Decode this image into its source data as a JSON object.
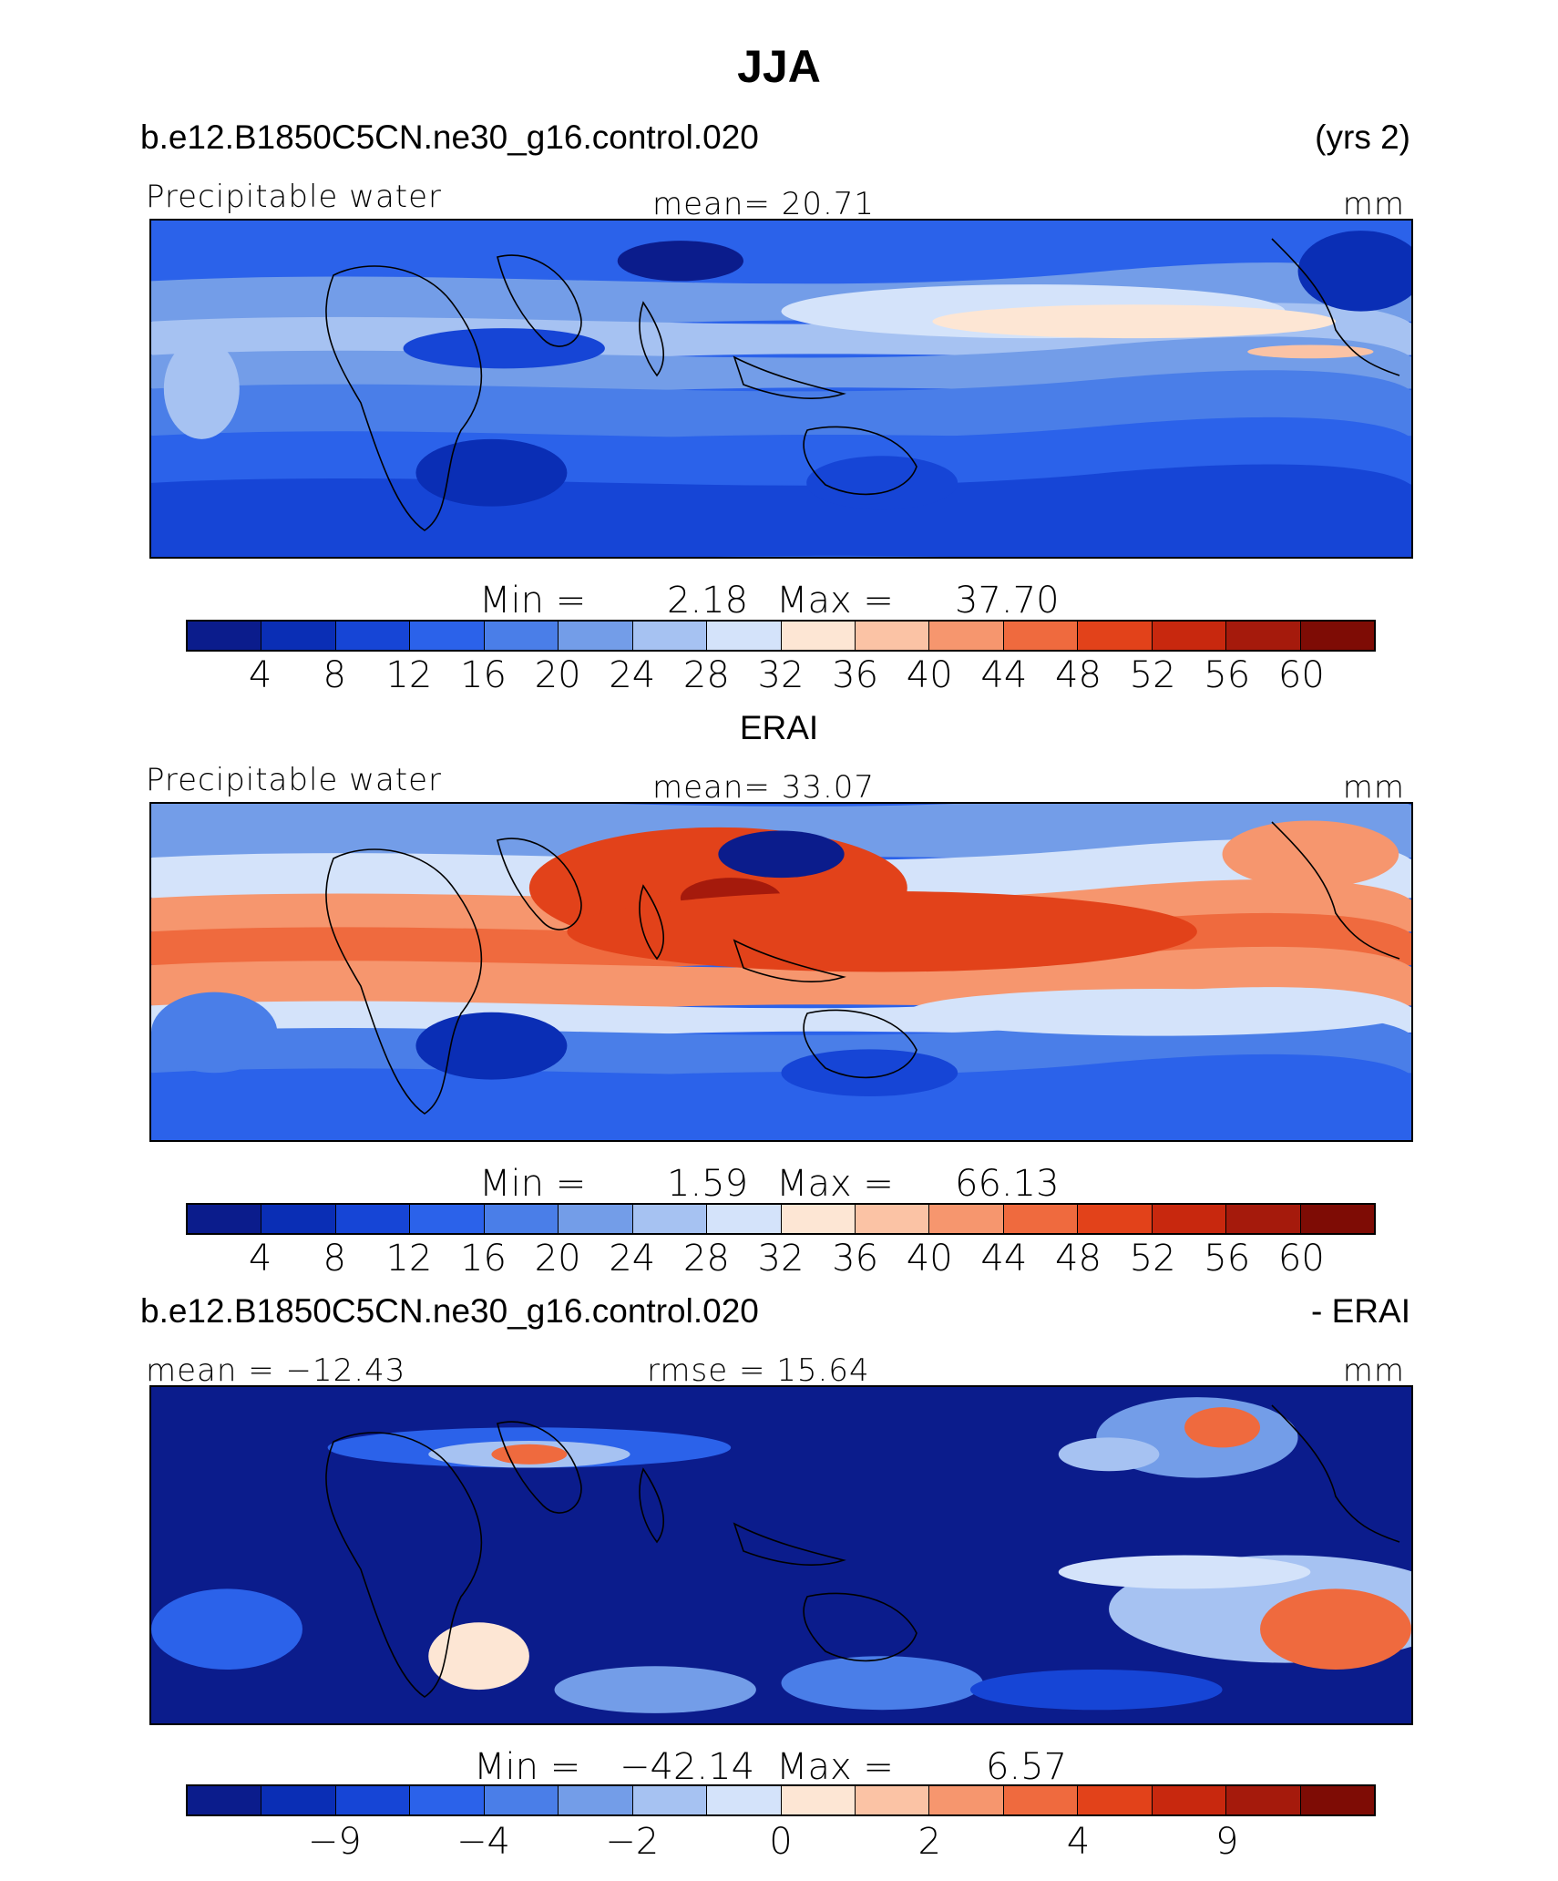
{
  "title": "JJA",
  "palette": [
    "#0b1c8c",
    "#0a2eb5",
    "#1645d6",
    "#2b62ea",
    "#4a7ee8",
    "#739de8",
    "#a6c2f2",
    "#d4e3fa",
    "#fde6d4",
    "#fbc3a5",
    "#f6966e",
    "#ef6a3e",
    "#e2421a",
    "#c8280e",
    "#a51a0c",
    "#7e0c05"
  ],
  "panels": [
    {
      "header_left": "b.e12.B1850C5CN.ne30_g16.control.020",
      "header_right": "(yrs 2)",
      "var_label": "Precipitable water",
      "mean_text": "mean=   20.71",
      "units": "mm",
      "min_label": "Min  =",
      "min_value": "2.18",
      "max_label": "Max  =",
      "max_value": "37.70",
      "ticks": [
        "4",
        "8",
        "12",
        "16",
        "20",
        "24",
        "28",
        "32",
        "36",
        "40",
        "44",
        "48",
        "52",
        "56",
        "60"
      ],
      "theme": "model"
    },
    {
      "header_left": "ERAI",
      "header_right": "",
      "var_label": "Precipitable water",
      "mean_text": "mean=   33.07",
      "units": "mm",
      "min_label": "Min  =",
      "min_value": "1.59",
      "max_label": "Max  =",
      "max_value": "66.13",
      "ticks": [
        "4",
        "8",
        "12",
        "16",
        "20",
        "24",
        "28",
        "32",
        "36",
        "40",
        "44",
        "48",
        "52",
        "56",
        "60"
      ],
      "theme": "obs"
    },
    {
      "header_left": "b.e12.B1850C5CN.ne30_g16.control.020",
      "header_right": "- ERAI",
      "var_label": "mean = −12.43",
      "mean_text": "rmse =   15.64",
      "units": "mm",
      "min_label": "Min  =",
      "min_value": "−42.14",
      "max_label": "Max  =",
      "max_value": "6.57",
      "ticks": [
        "−9",
        "−4",
        "−2",
        "0",
        "2",
        "4",
        "9"
      ],
      "tick_cells": [
        2,
        4,
        6,
        8,
        10,
        12,
        14
      ],
      "theme": "diff"
    }
  ]
}
